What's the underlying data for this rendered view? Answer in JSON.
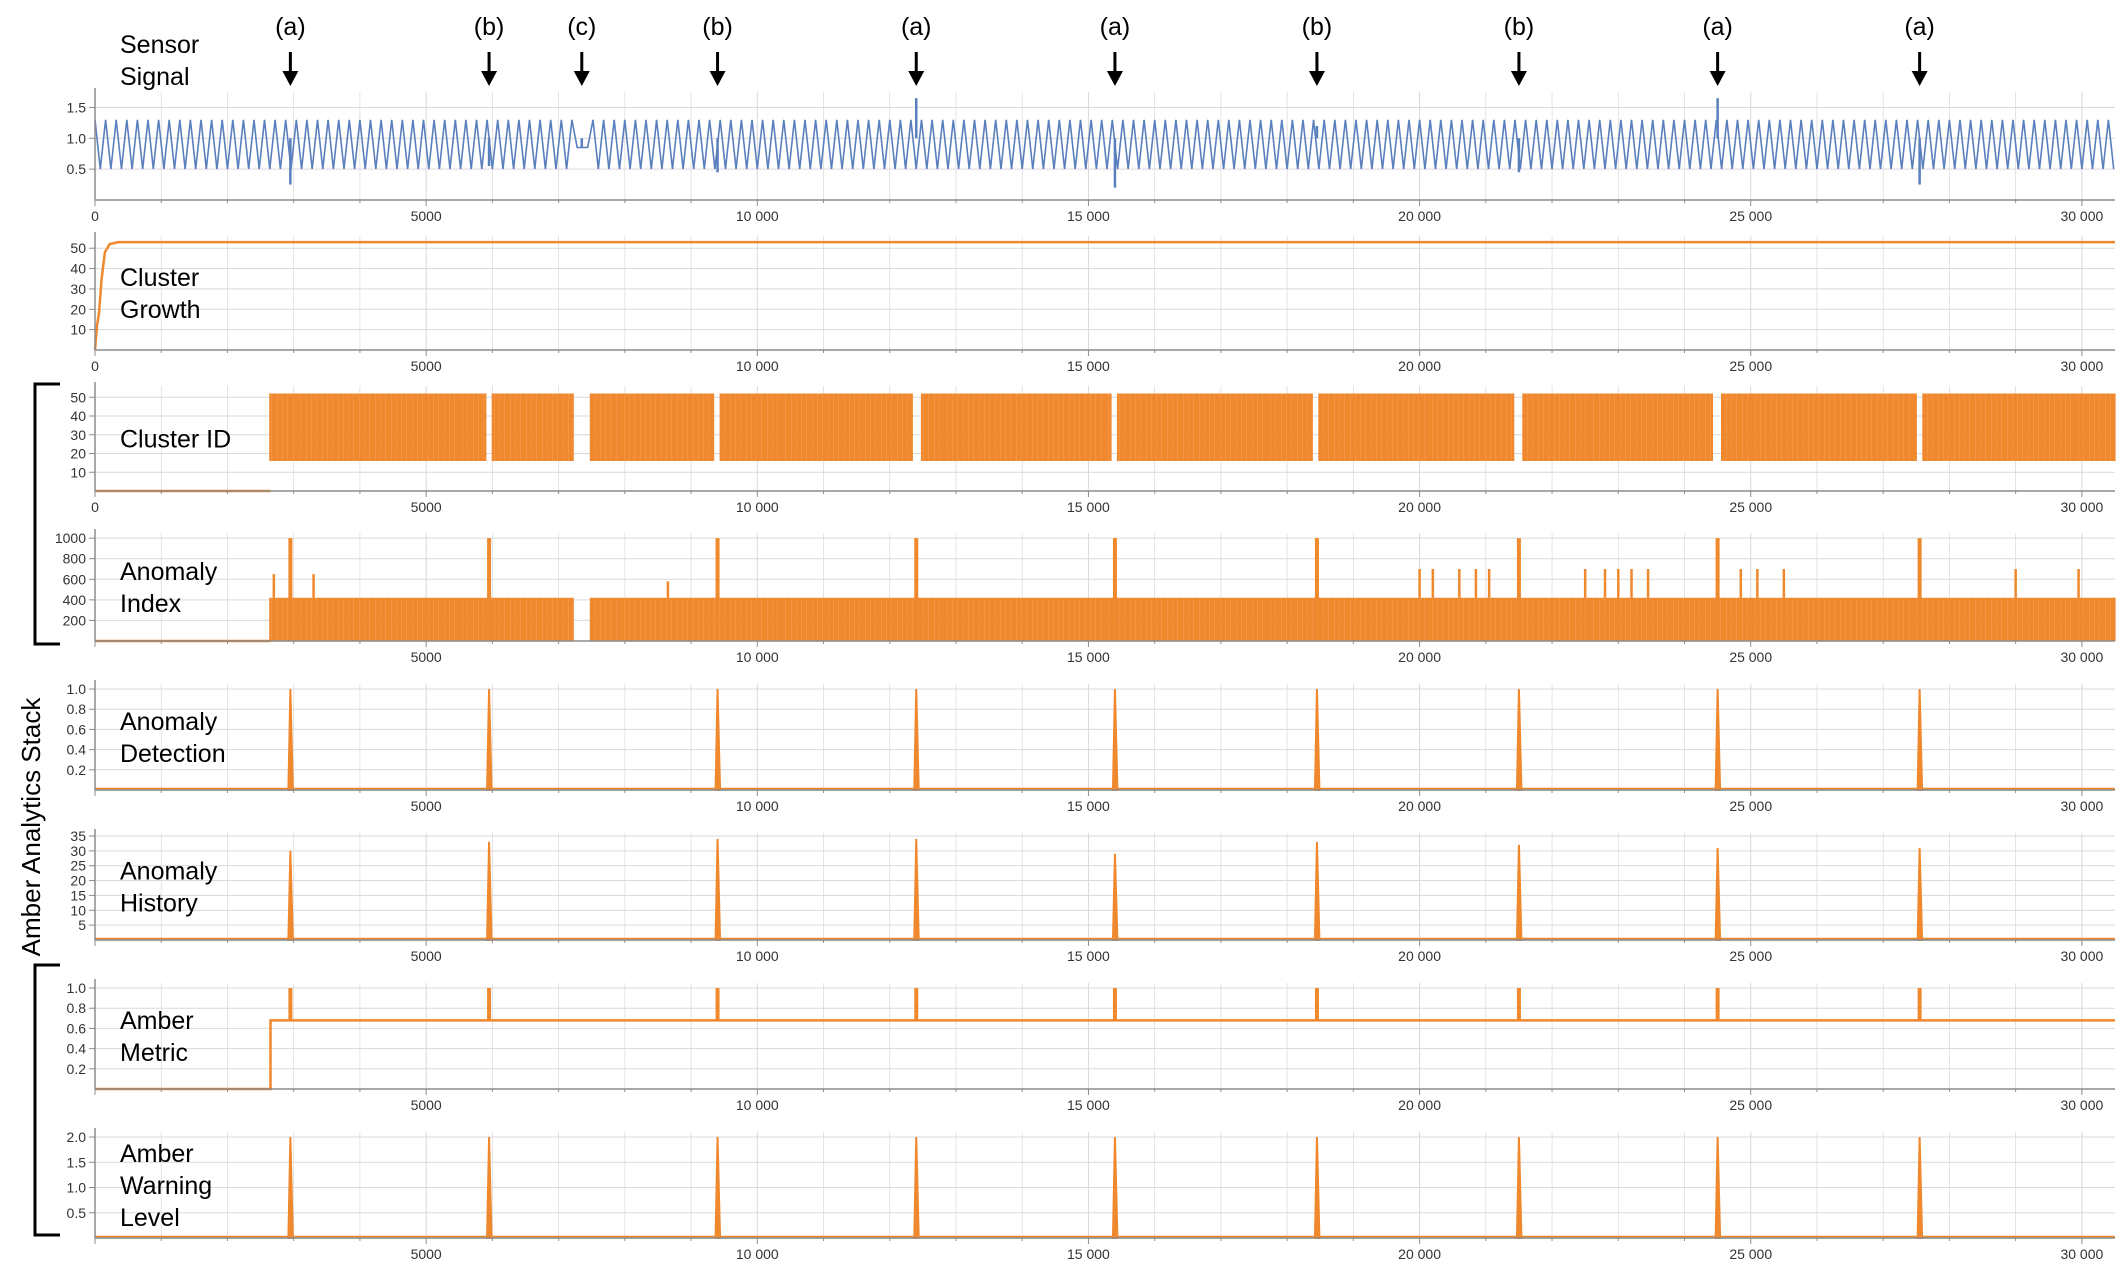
{
  "stack_label": "Amber Analytics Stack",
  "colors": {
    "signal": "#5a7fbd",
    "analytics": "#f0882e",
    "grid": "#d9d9d9",
    "axis": "#8c8c8c",
    "text": "#000000"
  },
  "event_markers": [
    {
      "label": "(a)",
      "x": 2950
    },
    {
      "label": "(b)",
      "x": 5950
    },
    {
      "label": "(c)",
      "x": 7350
    },
    {
      "label": "(b)",
      "x": 9400
    },
    {
      "label": "(a)",
      "x": 12400
    },
    {
      "label": "(a)",
      "x": 15400
    },
    {
      "label": "(b)",
      "x": 18450
    },
    {
      "label": "(b)",
      "x": 21500
    },
    {
      "label": "(a)",
      "x": 24500
    },
    {
      "label": "(a)",
      "x": 27550
    }
  ],
  "chart_data": [
    {
      "id": "sensor-signal",
      "type": "line",
      "title_lines": [
        "Sensor",
        "Signal"
      ],
      "series_color": "signal",
      "xlim": [
        0,
        30500
      ],
      "ylim": [
        0,
        1.75
      ],
      "x_ticks": [
        0,
        5000,
        10000,
        15000,
        20000,
        25000,
        30000
      ],
      "x_tick_labels": [
        "0",
        "5000",
        "10 000",
        "15 000",
        "20 000",
        "25 000",
        "30 000"
      ],
      "y_ticks": [
        0.5,
        1.0,
        1.5
      ],
      "y_tick_labels": [
        "0.5",
        "1.0",
        "1.5"
      ],
      "description_values": {
        "oscillation_min": 0.5,
        "oscillation_max": 1.3,
        "period_samples": 160
      },
      "spikes": [
        {
          "x": 2950,
          "y": 0.25
        },
        {
          "x": 5950,
          "y": 0.55
        },
        {
          "x": 7350,
          "y": 0.85
        },
        {
          "x": 9400,
          "y": 0.45
        },
        {
          "x": 12400,
          "y": 1.65
        },
        {
          "x": 15400,
          "y": 0.2
        },
        {
          "x": 18450,
          "y": 1.2
        },
        {
          "x": 21500,
          "y": 0.45
        },
        {
          "x": 24500,
          "y": 1.65
        },
        {
          "x": 27550,
          "y": 0.25
        }
      ],
      "gap": {
        "from": 7250,
        "to": 7450,
        "level": 0.85
      }
    },
    {
      "id": "cluster-growth",
      "type": "line",
      "title_lines": [
        "Cluster",
        "Growth"
      ],
      "series_color": "analytics",
      "xlim": [
        0,
        30500
      ],
      "ylim": [
        0,
        56
      ],
      "x_ticks": [
        0,
        5000,
        10000,
        15000,
        20000,
        25000,
        30000
      ],
      "x_tick_labels": [
        "0",
        "5000",
        "10 000",
        "15 000",
        "20 000",
        "25 000",
        "30 000"
      ],
      "y_ticks": [
        10,
        20,
        30,
        40,
        50
      ],
      "y_tick_labels": [
        "10",
        "20",
        "30",
        "40",
        "50"
      ],
      "points": [
        [
          0,
          0
        ],
        [
          30,
          12
        ],
        [
          60,
          18
        ],
        [
          100,
          35
        ],
        [
          150,
          48
        ],
        [
          220,
          52
        ],
        [
          350,
          53
        ],
        [
          30500,
          53
        ]
      ]
    },
    {
      "id": "cluster-id",
      "type": "bar",
      "title_lines": [
        "Cluster ID"
      ],
      "series_color": "analytics",
      "xlim": [
        0,
        30500
      ],
      "ylim": [
        0,
        56
      ],
      "x_ticks": [
        0,
        5000,
        10000,
        15000,
        20000,
        25000,
        30000
      ],
      "x_tick_labels": [
        "0",
        "5000",
        "10 000",
        "15 000",
        "20 000",
        "25 000",
        "30 000"
      ],
      "y_ticks": [
        10,
        20,
        30,
        40,
        50
      ],
      "y_tick_labels": [
        "10",
        "20",
        "30",
        "40",
        "50"
      ],
      "active_from": 2650,
      "base_level": 0,
      "peak_level": 52,
      "gaps": [
        [
          5900,
          5990
        ],
        [
          7250,
          7450
        ],
        [
          9350,
          9430
        ],
        [
          12350,
          12450
        ],
        [
          15350,
          15440
        ],
        [
          18400,
          18480
        ],
        [
          21450,
          21540
        ],
        [
          24450,
          24540
        ],
        [
          27500,
          27590
        ]
      ]
    },
    {
      "id": "anomaly-index",
      "type": "bar",
      "title_lines": [
        "Anomaly",
        "Index"
      ],
      "series_color": "analytics",
      "xlim": [
        0,
        30500
      ],
      "ylim": [
        0,
        1050
      ],
      "x_ticks": [
        5000,
        10000,
        15000,
        20000,
        25000,
        30000
      ],
      "x_tick_labels": [
        "5000",
        "10 000",
        "15 000",
        "20 000",
        "25 000",
        "30 000"
      ],
      "y_ticks": [
        200,
        400,
        600,
        800,
        1000
      ],
      "y_tick_labels": [
        "200",
        "400",
        "600",
        "800",
        "1000"
      ],
      "active_from": 2650,
      "typical_level": 420,
      "peaks": [
        2950,
        5950,
        9400,
        12400,
        15400,
        18450,
        21500,
        24500,
        27550
      ],
      "peak_level": 1000,
      "minor_spikes": [
        {
          "x": 2700,
          "y": 650
        },
        {
          "x": 3300,
          "y": 650
        },
        {
          "x": 8650,
          "y": 580
        },
        {
          "x": 20000,
          "y": 700
        },
        {
          "x": 20200,
          "y": 700
        },
        {
          "x": 20600,
          "y": 700
        },
        {
          "x": 20850,
          "y": 700
        },
        {
          "x": 21050,
          "y": 700
        },
        {
          "x": 22500,
          "y": 700
        },
        {
          "x": 22800,
          "y": 700
        },
        {
          "x": 23000,
          "y": 700
        },
        {
          "x": 23200,
          "y": 700
        },
        {
          "x": 23450,
          "y": 700
        },
        {
          "x": 24850,
          "y": 700
        },
        {
          "x": 25100,
          "y": 700
        },
        {
          "x": 25500,
          "y": 700
        },
        {
          "x": 29000,
          "y": 700
        },
        {
          "x": 29950,
          "y": 700
        }
      ],
      "gaps": [
        [
          7250,
          7450
        ]
      ]
    },
    {
      "id": "anomaly-detection",
      "type": "bar",
      "title_lines": [
        "Anomaly",
        "Detection"
      ],
      "series_color": "analytics",
      "xlim": [
        0,
        30500
      ],
      "ylim": [
        0,
        1.05
      ],
      "x_ticks": [
        5000,
        10000,
        15000,
        20000,
        25000,
        30000
      ],
      "x_tick_labels": [
        "5000",
        "10 000",
        "15 000",
        "20 000",
        "25 000",
        "30 000"
      ],
      "y_ticks": [
        0.2,
        0.4,
        0.6,
        0.8,
        1.0
      ],
      "y_tick_labels": [
        "0.2",
        "0.4",
        "0.6",
        "0.8",
        "1.0"
      ],
      "spikes": [
        {
          "x": 2950,
          "y": 1.0
        },
        {
          "x": 5950,
          "y": 1.0
        },
        {
          "x": 9400,
          "y": 1.0
        },
        {
          "x": 12400,
          "y": 1.0
        },
        {
          "x": 15400,
          "y": 1.0
        },
        {
          "x": 18450,
          "y": 1.0
        },
        {
          "x": 21500,
          "y": 1.0
        },
        {
          "x": 24500,
          "y": 1.0
        },
        {
          "x": 27550,
          "y": 1.0
        }
      ]
    },
    {
      "id": "anomaly-history",
      "type": "bar",
      "title_lines": [
        "Anomaly",
        "History"
      ],
      "series_color": "analytics",
      "xlim": [
        0,
        30500
      ],
      "ylim": [
        0,
        36
      ],
      "x_ticks": [
        5000,
        10000,
        15000,
        20000,
        25000,
        30000
      ],
      "x_tick_labels": [
        "5000",
        "10 000",
        "15 000",
        "20 000",
        "25 000",
        "30 000"
      ],
      "y_ticks": [
        5,
        10,
        15,
        20,
        25,
        30,
        35
      ],
      "y_tick_labels": [
        "5",
        "10",
        "15",
        "20",
        "25",
        "30",
        "35"
      ],
      "spikes": [
        {
          "x": 2950,
          "y": 30
        },
        {
          "x": 5950,
          "y": 33
        },
        {
          "x": 9400,
          "y": 34
        },
        {
          "x": 12400,
          "y": 34
        },
        {
          "x": 15400,
          "y": 29
        },
        {
          "x": 18450,
          "y": 33
        },
        {
          "x": 21500,
          "y": 32
        },
        {
          "x": 24500,
          "y": 31
        },
        {
          "x": 27550,
          "y": 31
        }
      ]
    },
    {
      "id": "amber-metric",
      "type": "line",
      "title_lines": [
        "Amber",
        "Metric"
      ],
      "series_color": "analytics",
      "xlim": [
        0,
        30500
      ],
      "ylim": [
        0,
        1.05
      ],
      "x_ticks": [
        5000,
        10000,
        15000,
        20000,
        25000,
        30000
      ],
      "x_tick_labels": [
        "5000",
        "10 000",
        "15 000",
        "20 000",
        "25 000",
        "30 000"
      ],
      "y_ticks": [
        0.2,
        0.4,
        0.6,
        0.8,
        1.0
      ],
      "y_tick_labels": [
        "0.2",
        "0.4",
        "0.6",
        "0.8",
        "1.0"
      ],
      "step": {
        "before": 0,
        "after": 0.68,
        "at": 2650
      },
      "spikes": [
        {
          "x": 2950,
          "y": 1.0
        },
        {
          "x": 5950,
          "y": 1.0
        },
        {
          "x": 9400,
          "y": 1.0
        },
        {
          "x": 12400,
          "y": 1.0
        },
        {
          "x": 15400,
          "y": 1.0
        },
        {
          "x": 18450,
          "y": 1.0
        },
        {
          "x": 21500,
          "y": 1.0
        },
        {
          "x": 24500,
          "y": 1.0
        },
        {
          "x": 27550,
          "y": 1.0
        }
      ]
    },
    {
      "id": "amber-warning-level",
      "type": "bar",
      "title_lines": [
        "Amber",
        "Warning",
        "Level"
      ],
      "series_color": "analytics",
      "xlim": [
        0,
        30500
      ],
      "ylim": [
        0,
        2.1
      ],
      "x_ticks": [
        5000,
        10000,
        15000,
        20000,
        25000,
        30000
      ],
      "x_tick_labels": [
        "5000",
        "10 000",
        "15 000",
        "20 000",
        "25 000",
        "30 000"
      ],
      "y_ticks": [
        0.5,
        1.0,
        1.5,
        2.0
      ],
      "y_tick_labels": [
        "0.5",
        "1.0",
        "1.5",
        "2.0"
      ],
      "spikes": [
        {
          "x": 2950,
          "y": 2.0
        },
        {
          "x": 5950,
          "y": 2.0
        },
        {
          "x": 9400,
          "y": 2.0
        },
        {
          "x": 12400,
          "y": 2.0
        },
        {
          "x": 15400,
          "y": 2.0
        },
        {
          "x": 18450,
          "y": 2.0
        },
        {
          "x": 21500,
          "y": 2.0
        },
        {
          "x": 24500,
          "y": 2.0
        },
        {
          "x": 27550,
          "y": 2.0
        }
      ]
    }
  ]
}
